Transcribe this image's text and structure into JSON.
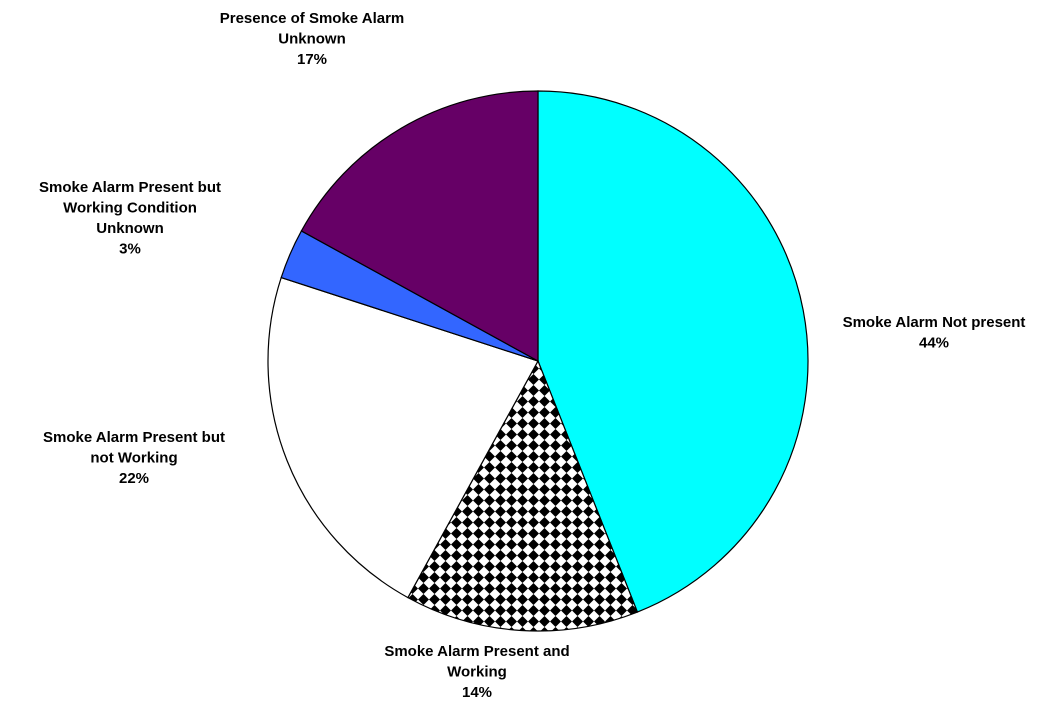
{
  "chart_data": {
    "type": "pie",
    "title": "",
    "slices": [
      {
        "label_lines": [
          "Smoke Alarm Not present"
        ],
        "label": "Smoke Alarm Not present",
        "value": 44,
        "value_text": "44%",
        "color": "#00FFFF",
        "fill_style": "solid"
      },
      {
        "label_lines": [
          "Smoke Alarm Present and",
          "Working"
        ],
        "label": "Smoke Alarm Present and Working",
        "value": 14,
        "value_text": "14%",
        "color": "#000000",
        "fill_style": "diamond-checker"
      },
      {
        "label_lines": [
          "Smoke Alarm Present but",
          "not Working"
        ],
        "label": "Smoke Alarm Present but not Working",
        "value": 22,
        "value_text": "22%",
        "color": "#FFFFFF",
        "fill_style": "solid"
      },
      {
        "label_lines": [
          "Smoke Alarm Present but",
          "Working Condition",
          "Unknown"
        ],
        "label": "Smoke Alarm Present but Working Condition Unknown",
        "value": 3,
        "value_text": "3%",
        "color": "#3366FF",
        "fill_style": "solid"
      },
      {
        "label_lines": [
          "Presence of Smoke Alarm",
          "Unknown"
        ],
        "label": "Presence of Smoke Alarm Unknown",
        "value": 17,
        "value_text": "17%",
        "color": "#660066",
        "fill_style": "solid"
      }
    ],
    "start": "12 o'clock",
    "direction": "clockwise",
    "legend": "none"
  }
}
